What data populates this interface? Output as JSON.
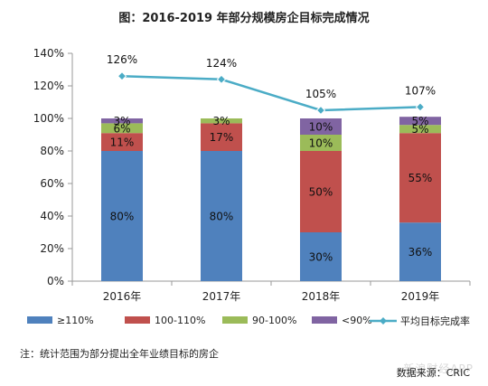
{
  "title": "图：2016-2019 年部分规模房企目标完成情况",
  "footnote": "注：统计范围为部分提出全年业绩目标的房企",
  "source": "数据来源：CRIC",
  "watermark": "新浪财经APP",
  "colors": {
    "s1": "#4f81bd",
    "s2": "#c0504d",
    "s3": "#9bbb59",
    "s4": "#8064a2",
    "line": "#4bacc6",
    "axis": "#999999"
  },
  "chart_data": {
    "type": "bar",
    "stacked": true,
    "categories": [
      "2016年",
      "2017年",
      "2018年",
      "2019年"
    ],
    "ylim": [
      0,
      140
    ],
    "yticks": [
      0,
      20,
      40,
      60,
      80,
      100,
      120,
      140
    ],
    "ytick_labels": [
      "0%",
      "20%",
      "40%",
      "60%",
      "80%",
      "100%",
      "120%",
      "140%"
    ],
    "series": [
      {
        "name": "≥110%",
        "values": [
          80,
          80,
          30,
          36
        ],
        "labels": [
          "80%",
          "80%",
          "30%",
          "36%"
        ],
        "color": "#4f81bd"
      },
      {
        "name": "100-110%",
        "values": [
          11,
          17,
          50,
          55
        ],
        "labels": [
          "11%",
          "17%",
          "50%",
          "55%"
        ],
        "color": "#c0504d"
      },
      {
        "name": "90-100%",
        "values": [
          6,
          3,
          10,
          5
        ],
        "labels": [
          "6%",
          "3%",
          "10%",
          "5%"
        ],
        "color": "#9bbb59"
      },
      {
        "name": "<90%",
        "values": [
          3,
          0,
          10,
          5
        ],
        "labels": [
          "3%",
          "",
          "10%",
          "5%"
        ],
        "color": "#8064a2"
      }
    ],
    "line_series": {
      "name": "平均目标完成率",
      "values": [
        126,
        124,
        105,
        107
      ],
      "labels": [
        "126%",
        "124%",
        "105%",
        "107%"
      ],
      "color": "#4bacc6"
    },
    "legend_position": "bottom"
  }
}
